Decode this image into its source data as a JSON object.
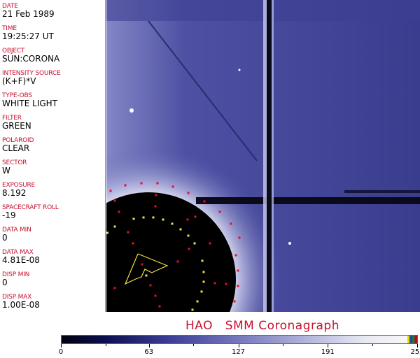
{
  "header_fields": [
    {
      "label": "DATE",
      "value": "21 Feb 1989"
    },
    {
      "label": "TIME",
      "value": "19:25:27 UT"
    },
    {
      "label": "OBJECT",
      "value": "SUN:CORONA"
    },
    {
      "label": "INTENSITY SOURCE",
      "value": "(K+F)*V"
    },
    {
      "label": "TYPE-OBS",
      "value": "WHITE LIGHT"
    },
    {
      "label": "FILTER",
      "value": "GREEN"
    },
    {
      "label": "POLAROID",
      "value": "CLEAR"
    },
    {
      "label": "SECTOR",
      "value": "W"
    },
    {
      "label": "EXPOSURE",
      "value": "8.192"
    },
    {
      "label": "SPACECRAFT ROLL",
      "value": "-19"
    },
    {
      "label": "DATA MIN",
      "value": "0"
    },
    {
      "label": "DATA MAX",
      "value": "4.81E-08"
    },
    {
      "label": "DISP MIN",
      "value": "0"
    },
    {
      "label": "DISP MAX",
      "value": "1.00E-08"
    }
  ],
  "title": "HAO   SMM Coronagraph",
  "colorbar": {
    "ticks": [
      "0",
      "63",
      "127",
      "191",
      "255"
    ],
    "min": 0,
    "max": 255,
    "colormap": "dark-navy to white, blue",
    "top_colors": [
      "#e8d400",
      "#1850a0",
      "#1a8030",
      "#b01010"
    ]
  },
  "image": {
    "description_colors": {
      "background": "#3b3d8f",
      "occulter": "#000000",
      "pylon": "#0a0a1a",
      "markers_red": "#e0102a",
      "markers_yellow": "#f0e040"
    }
  }
}
